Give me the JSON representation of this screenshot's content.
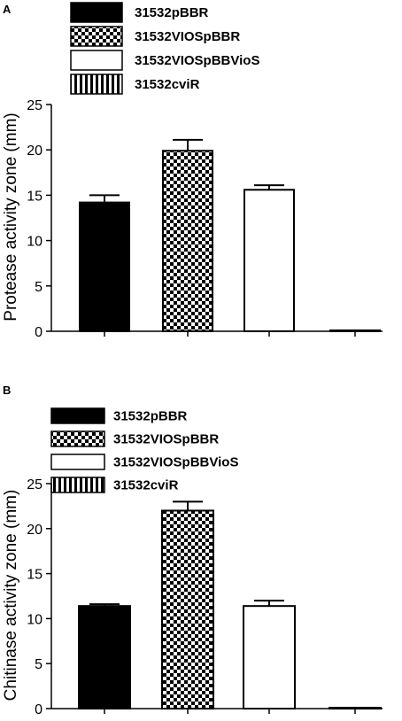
{
  "chart_data": [
    {
      "type": "bar",
      "panel_label": "A",
      "ylabel": "Protease activity zone (mm)",
      "ylim": [
        0,
        25
      ],
      "yticks": [
        0,
        5,
        10,
        15,
        20,
        25
      ],
      "legend_position": "top",
      "series": [
        {
          "name": "31532pBBR",
          "value": 14.2,
          "error": 0.8,
          "pattern": "solid"
        },
        {
          "name": "31532VIOSpBBR",
          "value": 19.9,
          "error": 1.2,
          "pattern": "checker"
        },
        {
          "name": "31532VIOSpBBVioS",
          "value": 15.6,
          "error": 0.5,
          "pattern": "open"
        },
        {
          "name": "31532cviR",
          "value": 0.1,
          "error": 0,
          "pattern": "vstripe"
        }
      ]
    },
    {
      "type": "bar",
      "panel_label": "B",
      "ylabel": "Chitinase activity zone (mm)",
      "ylim": [
        0,
        25
      ],
      "yticks": [
        0,
        5,
        10,
        15,
        20,
        25
      ],
      "legend_position": "top",
      "series": [
        {
          "name": "31532pBBR",
          "value": 11.4,
          "error": 0.2,
          "pattern": "solid"
        },
        {
          "name": "31532VIOSpBBR",
          "value": 22.0,
          "error": 1.0,
          "pattern": "checker"
        },
        {
          "name": "31532VIOSpBBVioS",
          "value": 11.4,
          "error": 0.6,
          "pattern": "open"
        },
        {
          "name": "31532cviR",
          "value": 0.1,
          "error": 0,
          "pattern": "vstripe"
        }
      ]
    }
  ]
}
